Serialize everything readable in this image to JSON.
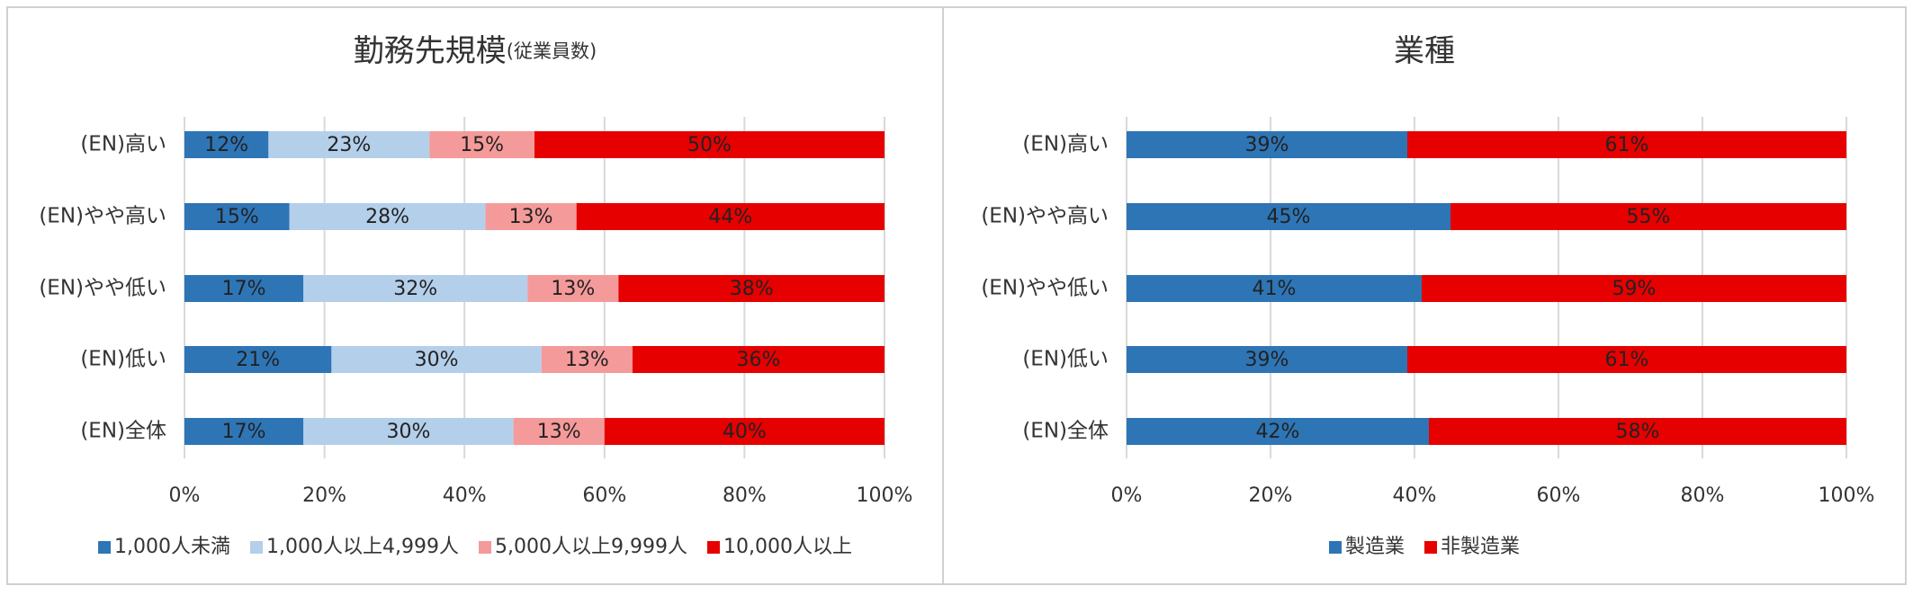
{
  "chart_data": [
    {
      "type": "bar",
      "orientation": "horizontal",
      "stacked": true,
      "title": "勤務先規模",
      "subtitle": "(従業員数)",
      "categories": [
        "(EN)高い",
        "(EN)やや高い",
        "(EN)やや低い",
        "(EN)低い",
        "(EN)全体"
      ],
      "series": [
        {
          "name": "1,000人未満",
          "color": "#2e75b6",
          "values": [
            12,
            15,
            17,
            21,
            17
          ],
          "value_labels": [
            "12%",
            "15%",
            "17%",
            "21%",
            "17%"
          ]
        },
        {
          "name": "1,000人以上4,999人",
          "color": "#b4cfea",
          "values": [
            23,
            28,
            32,
            30,
            30
          ],
          "value_labels": [
            "23%",
            "28%",
            "32%",
            "30%",
            "30%"
          ]
        },
        {
          "name": "5,000人以上9,999人",
          "color": "#f59a9a",
          "values": [
            15,
            13,
            13,
            13,
            13
          ],
          "value_labels": [
            "15%",
            "13%",
            "13%",
            "13%",
            "13%"
          ]
        },
        {
          "name": "10,000人以上",
          "color": "#e60000",
          "values": [
            50,
            44,
            38,
            36,
            40
          ],
          "value_labels": [
            "50%",
            "44%",
            "38%",
            "36%",
            "40%"
          ]
        }
      ],
      "xlim": [
        0,
        100
      ],
      "xticks": [
        {
          "value": 0,
          "label": "0%"
        },
        {
          "value": 20,
          "label": "20%"
        },
        {
          "value": 40,
          "label": "40%"
        },
        {
          "value": 60,
          "label": "60%"
        },
        {
          "value": 80,
          "label": "80%"
        },
        {
          "value": 100,
          "label": "100%"
        }
      ],
      "grid": true,
      "legend": "bottom"
    },
    {
      "type": "bar",
      "orientation": "horizontal",
      "stacked": true,
      "title": "業種",
      "categories": [
        "(EN)高い",
        "(EN)やや高い",
        "(EN)やや低い",
        "(EN)低い",
        "(EN)全体"
      ],
      "series": [
        {
          "name": "製造業",
          "color": "#2e75b6",
          "values": [
            39,
            45,
            41,
            39,
            42
          ],
          "value_labels": [
            "39%",
            "45%",
            "41%",
            "39%",
            "42%"
          ]
        },
        {
          "name": "非製造業",
          "color": "#e60000",
          "values": [
            61,
            55,
            59,
            61,
            58
          ],
          "value_labels": [
            "61%",
            "55%",
            "59%",
            "61%",
            "58%"
          ]
        }
      ],
      "xlim": [
        0,
        100
      ],
      "xticks": [
        {
          "value": 0,
          "label": "0%"
        },
        {
          "value": 20,
          "label": "20%"
        },
        {
          "value": 40,
          "label": "40%"
        },
        {
          "value": 60,
          "label": "60%"
        },
        {
          "value": 80,
          "label": "80%"
        },
        {
          "value": 100,
          "label": "100%"
        }
      ],
      "grid": true,
      "legend": "bottom"
    }
  ]
}
